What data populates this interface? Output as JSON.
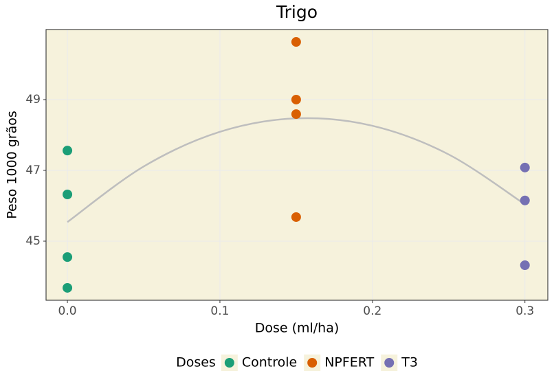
{
  "chart_data": {
    "type": "scatter",
    "title": "Trigo",
    "x_label": "Dose (ml/ha)",
    "y_label": "Peso 1000 grãos",
    "legend_title": "Doses",
    "legend": "bottom",
    "grid": true,
    "background": "#f6f2dc",
    "xlim": [
      -0.014,
      0.315
    ],
    "xticks": [
      {
        "value": 0,
        "label": "0.0"
      },
      0.1,
      0.2,
      0.3
    ],
    "ylim": [
      43.33,
      50.98
    ],
    "yticks": [
      45,
      47,
      49
    ],
    "series": [
      {
        "name": "Controle",
        "color": "#1b9e77",
        "x": [
          0,
          0,
          0,
          0
        ],
        "values": [
          47.56,
          46.32,
          44.55,
          43.68
        ]
      },
      {
        "name": "NPFERT",
        "color": "#d95f02",
        "x": [
          0.15,
          0.15,
          0.15,
          0.15
        ],
        "values": [
          50.63,
          49.0,
          48.59,
          45.68
        ]
      },
      {
        "name": "T3",
        "color": "#7570b3",
        "x": [
          0.3,
          0.3,
          0.3
        ],
        "values": [
          47.08,
          46.15,
          44.32
        ]
      }
    ],
    "fit": {
      "color": "#bebebe",
      "x": [
        0,
        0.05,
        0.1,
        0.15,
        0.2,
        0.25,
        0.3
      ],
      "values": [
        45.54,
        47.11,
        48.09,
        48.47,
        48.26,
        47.45,
        46.04
      ]
    }
  }
}
